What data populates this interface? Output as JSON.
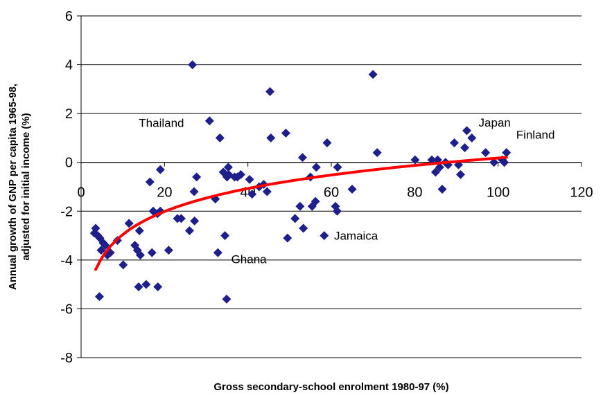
{
  "chart_data": {
    "type": "scatter",
    "title": "",
    "xlabel": "Gross secondary-school enrolment 1980-97 (%)",
    "ylabel_lines": [
      "Annual growth of GNP per capita 1965-98,",
      "adjusted for initial income (%)"
    ],
    "xlim": [
      0,
      120
    ],
    "ylim": [
      -8,
      6
    ],
    "x_ticks": [
      0,
      20,
      40,
      60,
      80,
      100,
      120
    ],
    "y_ticks": [
      -8,
      -6,
      -4,
      -2,
      0,
      2,
      4,
      6
    ],
    "grid": "horizontal",
    "legend": "none",
    "colors": {
      "points": "#1f1f8c",
      "trend": "#ff0000",
      "grid": "#000000"
    },
    "points": [
      [
        3.5,
        -2.7
      ],
      [
        3.2,
        -2.9
      ],
      [
        4.0,
        -3.0
      ],
      [
        4.5,
        -3.1
      ],
      [
        4.8,
        -3.6
      ],
      [
        5.3,
        -3.3
      ],
      [
        5.8,
        -3.4
      ],
      [
        6.3,
        -3.8
      ],
      [
        7.0,
        -3.7
      ],
      [
        4.4,
        -5.5
      ],
      [
        8.7,
        -3.2
      ],
      [
        10.1,
        -4.2
      ],
      [
        11.5,
        -2.5
      ],
      [
        12.9,
        -3.4
      ],
      [
        13.5,
        -3.6
      ],
      [
        14.0,
        -2.8
      ],
      [
        14.2,
        -3.8
      ],
      [
        13.8,
        -5.1
      ],
      [
        15.6,
        -5.0
      ],
      [
        16.5,
        -0.8
      ],
      [
        17.0,
        -3.7
      ],
      [
        17.3,
        -2.0
      ],
      [
        18.3,
        -2.1
      ],
      [
        18.4,
        -5.1
      ],
      [
        19.0,
        -0.3
      ],
      [
        19.0,
        -2.0
      ],
      [
        21.0,
        -3.6
      ],
      [
        23.1,
        -2.3
      ],
      [
        24.0,
        -2.3
      ],
      [
        26.0,
        -2.8
      ],
      [
        26.7,
        4.0
      ],
      [
        27.1,
        -1.2
      ],
      [
        27.2,
        -2.4
      ],
      [
        27.7,
        -0.6
      ],
      [
        30.8,
        1.7
      ],
      [
        32.2,
        -1.5
      ],
      [
        32.8,
        -3.7
      ],
      [
        33.3,
        1.0
      ],
      [
        34.1,
        -0.4
      ],
      [
        34.5,
        -3.0
      ],
      [
        34.9,
        -5.6
      ],
      [
        35.0,
        -0.6
      ],
      [
        35.3,
        -0.2
      ],
      [
        35.4,
        -0.5
      ],
      [
        36.8,
        -0.6
      ],
      [
        37.5,
        -0.6
      ],
      [
        38.3,
        -0.5
      ],
      [
        40.4,
        -0.7
      ],
      [
        41.0,
        -1.3
      ],
      [
        42.7,
        -1.0
      ],
      [
        43.8,
        -0.9
      ],
      [
        44.6,
        -1.2
      ],
      [
        45.3,
        2.9
      ],
      [
        45.5,
        1.0
      ],
      [
        49.1,
        1.2
      ],
      [
        49.5,
        -3.1
      ],
      [
        51.3,
        -2.3
      ],
      [
        52.5,
        -1.8
      ],
      [
        53.1,
        0.2
      ],
      [
        53.3,
        -2.7
      ],
      [
        55.0,
        -0.6
      ],
      [
        55.4,
        -1.8
      ],
      [
        56.2,
        -1.6
      ],
      [
        56.4,
        -0.2
      ],
      [
        58.3,
        -3.0
      ],
      [
        59.0,
        0.8
      ],
      [
        61.0,
        -1.8
      ],
      [
        61.4,
        -2.0
      ],
      [
        61.5,
        -0.2
      ],
      [
        65.0,
        -1.1
      ],
      [
        70.0,
        3.6
      ],
      [
        71.0,
        0.4
      ],
      [
        80.1,
        0.1
      ],
      [
        84.1,
        0.1
      ],
      [
        85.0,
        -0.4
      ],
      [
        85.5,
        0.1
      ],
      [
        86.0,
        -0.2
      ],
      [
        86.6,
        -1.1
      ],
      [
        87.4,
        0.0
      ],
      [
        88.0,
        -0.1
      ],
      [
        89.5,
        0.8
      ],
      [
        90.5,
        -0.1
      ],
      [
        91.0,
        -0.5
      ],
      [
        92.0,
        0.6
      ],
      [
        92.5,
        1.3
      ],
      [
        93.7,
        1.0
      ],
      [
        97.0,
        0.4
      ],
      [
        99.0,
        0.0
      ],
      [
        101.0,
        0.1
      ],
      [
        101.5,
        0.0
      ],
      [
        102.0,
        0.4
      ]
    ],
    "trendline": {
      "type": "logarithmic",
      "x_range": [
        3.5,
        102
      ],
      "equation_shown": false
    },
    "annotations": [
      {
        "text": "Thailand",
        "near": [
          31,
          1.7
        ]
      },
      {
        "text": "Japan",
        "near": [
          93,
          1.3
        ]
      },
      {
        "text": "Finland",
        "near": [
          102,
          0.4
        ]
      },
      {
        "text": "Ghana",
        "near": [
          35,
          -3.0
        ]
      },
      {
        "text": "Jamaica",
        "near": [
          58,
          -3.0
        ]
      }
    ]
  }
}
